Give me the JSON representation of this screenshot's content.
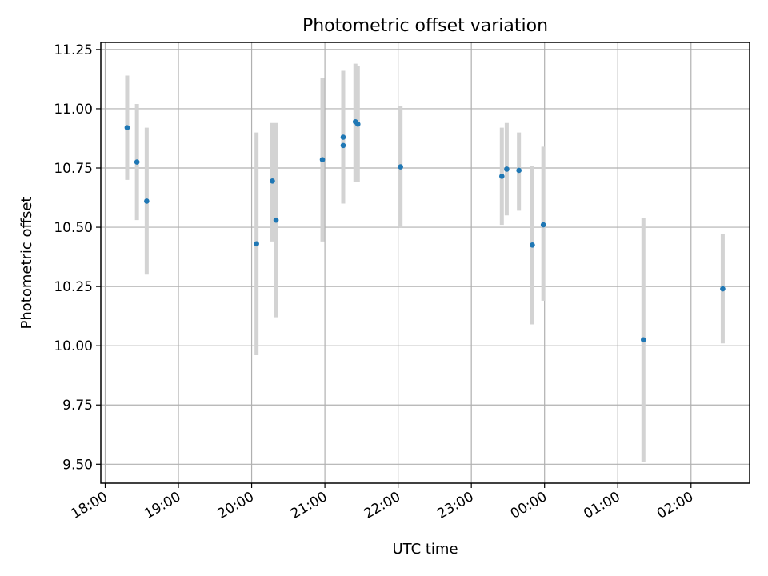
{
  "chart_data": {
    "type": "scatter",
    "title": "Photometric offset variation",
    "xlabel": "UTC time",
    "ylabel": "Photometric offset",
    "x_tick_labels": [
      "18:00",
      "19:00",
      "20:00",
      "21:00",
      "22:00",
      "23:00",
      "00:00",
      "01:00",
      "02:00"
    ],
    "x_tick_hours": [
      18,
      19,
      20,
      21,
      22,
      23,
      24,
      25,
      26
    ],
    "xlim_hours": [
      17.94,
      26.8
    ],
    "y_ticks": [
      9.5,
      9.75,
      10.0,
      10.25,
      10.5,
      10.75,
      11.0,
      11.25
    ],
    "y_tick_labels": [
      "9.50",
      "9.75",
      "10.00",
      "10.25",
      "10.50",
      "10.75",
      "11.00",
      "11.25"
    ],
    "ylim": [
      9.42,
      11.28
    ],
    "grid": true,
    "colors": {
      "point": "#1f77b4",
      "errorbar": "#d3d3d3",
      "grid": "#b0b0b0"
    },
    "points": [
      {
        "time": "18:18",
        "y": 10.92,
        "ylo": 10.7,
        "yhi": 11.14
      },
      {
        "time": "18:26",
        "y": 10.775,
        "ylo": 10.53,
        "yhi": 11.02
      },
      {
        "time": "18:34",
        "y": 10.61,
        "ylo": 10.3,
        "yhi": 10.92
      },
      {
        "time": "20:04",
        "y": 10.43,
        "ylo": 9.96,
        "yhi": 10.9
      },
      {
        "time": "20:17",
        "y": 10.695,
        "ylo": 10.44,
        "yhi": 10.94
      },
      {
        "time": "20:20",
        "y": 10.53,
        "ylo": 10.12,
        "yhi": 10.94
      },
      {
        "time": "20:58",
        "y": 10.785,
        "ylo": 10.44,
        "yhi": 11.13
      },
      {
        "time": "21:15",
        "y": 10.88,
        "ylo": 10.68,
        "yhi": 11.08
      },
      {
        "time": "21:15",
        "y": 10.845,
        "ylo": 10.6,
        "yhi": 11.16
      },
      {
        "time": "21:25",
        "y": 10.945,
        "ylo": 10.69,
        "yhi": 11.19
      },
      {
        "time": "21:27",
        "y": 10.935,
        "ylo": 10.69,
        "yhi": 11.18
      },
      {
        "time": "22:02",
        "y": 10.755,
        "ylo": 10.5,
        "yhi": 11.01
      },
      {
        "time": "23:25",
        "y": 10.715,
        "ylo": 10.51,
        "yhi": 10.92
      },
      {
        "time": "23:29",
        "y": 10.745,
        "ylo": 10.55,
        "yhi": 10.94
      },
      {
        "time": "23:39",
        "y": 10.74,
        "ylo": 10.57,
        "yhi": 10.9
      },
      {
        "time": "23:50",
        "y": 10.425,
        "ylo": 10.09,
        "yhi": 10.76
      },
      {
        "time": "23:59",
        "y": 10.51,
        "ylo": 10.19,
        "yhi": 10.84
      },
      {
        "time": "01:21",
        "y": 10.025,
        "ylo": 9.51,
        "yhi": 10.54
      },
      {
        "time": "02:26",
        "y": 10.24,
        "ylo": 10.01,
        "yhi": 10.47
      }
    ]
  }
}
